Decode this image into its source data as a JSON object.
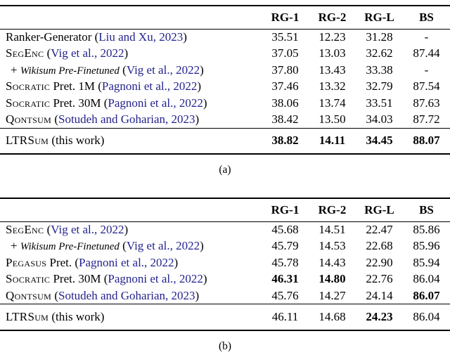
{
  "citation_color": "#23238e",
  "tables": [
    {
      "caption": "(a)",
      "columns": [
        "RG-1",
        "RG-2",
        "RG-L",
        "BS"
      ],
      "rows": [
        {
          "indent": false,
          "label_parts": [
            {
              "text": "Ranker-Generator (",
              "style": "plain"
            },
            {
              "text": "Liu and Xu, 2023",
              "style": "cite"
            },
            {
              "text": ")",
              "style": "plain"
            }
          ],
          "cells": [
            {
              "text": "35.51",
              "bold": false
            },
            {
              "text": "12.23",
              "bold": false
            },
            {
              "text": "31.28",
              "bold": false
            },
            {
              "text": "-",
              "bold": false
            }
          ]
        },
        {
          "indent": false,
          "label_parts": [
            {
              "text": "SegEnc",
              "style": "smallcaps"
            },
            {
              "text": " (",
              "style": "plain"
            },
            {
              "text": "Vig et al., 2022",
              "style": "cite"
            },
            {
              "text": ")",
              "style": "plain"
            }
          ],
          "cells": [
            {
              "text": "37.05",
              "bold": false
            },
            {
              "text": "13.03",
              "bold": false
            },
            {
              "text": "32.62",
              "bold": false
            },
            {
              "text": "87.44",
              "bold": false
            }
          ]
        },
        {
          "indent": true,
          "label_parts": [
            {
              "text": "+ ",
              "style": "plain"
            },
            {
              "text": "Wikisum Pre-Finetuned",
              "style": "italic"
            },
            {
              "text": " (",
              "style": "plain"
            },
            {
              "text": "Vig et al., 2022",
              "style": "cite"
            },
            {
              "text": ")",
              "style": "plain"
            }
          ],
          "cells": [
            {
              "text": "37.80",
              "bold": false
            },
            {
              "text": "13.43",
              "bold": false
            },
            {
              "text": "33.38",
              "bold": false
            },
            {
              "text": "-",
              "bold": false
            }
          ]
        },
        {
          "indent": false,
          "label_parts": [
            {
              "text": "Socratic",
              "style": "smallcaps"
            },
            {
              "text": " Pret. 1M (",
              "style": "plain"
            },
            {
              "text": "Pagnoni et al., 2022",
              "style": "cite"
            },
            {
              "text": ")",
              "style": "plain"
            }
          ],
          "cells": [
            {
              "text": "37.46",
              "bold": false
            },
            {
              "text": "13.32",
              "bold": false
            },
            {
              "text": "32.79",
              "bold": false
            },
            {
              "text": "87.54",
              "bold": false
            }
          ]
        },
        {
          "indent": false,
          "label_parts": [
            {
              "text": "Socratic",
              "style": "smallcaps"
            },
            {
              "text": " Pret. 30M (",
              "style": "plain"
            },
            {
              "text": "Pagnoni et al., 2022",
              "style": "cite"
            },
            {
              "text": ")",
              "style": "plain"
            }
          ],
          "cells": [
            {
              "text": "38.06",
              "bold": false
            },
            {
              "text": "13.74",
              "bold": false
            },
            {
              "text": "33.51",
              "bold": false
            },
            {
              "text": "87.63",
              "bold": false
            }
          ]
        },
        {
          "indent": false,
          "label_parts": [
            {
              "text": "Qontsum",
              "style": "smallcaps"
            },
            {
              "text": " (",
              "style": "plain"
            },
            {
              "text": "Sotudeh and Goharian, 2023",
              "style": "cite"
            },
            {
              "text": ")",
              "style": "plain"
            }
          ],
          "cells": [
            {
              "text": "38.42",
              "bold": false
            },
            {
              "text": "13.50",
              "bold": false
            },
            {
              "text": "34.03",
              "bold": false
            },
            {
              "text": "87.72",
              "bold": false
            }
          ]
        }
      ],
      "final_rows": [
        {
          "indent": false,
          "label_parts": [
            {
              "text": "LTRSum",
              "style": "smallcaps"
            },
            {
              "text": " (this work)",
              "style": "plain"
            }
          ],
          "cells": [
            {
              "text": "38.82",
              "bold": true
            },
            {
              "text": "14.11",
              "bold": true
            },
            {
              "text": "34.45",
              "bold": true
            },
            {
              "text": "88.07",
              "bold": true
            }
          ]
        }
      ]
    },
    {
      "caption": "(b)",
      "columns": [
        "RG-1",
        "RG-2",
        "RG-L",
        "BS"
      ],
      "rows": [
        {
          "indent": false,
          "label_parts": [
            {
              "text": "SegEnc",
              "style": "smallcaps"
            },
            {
              "text": " (",
              "style": "plain"
            },
            {
              "text": "Vig et al., 2022",
              "style": "cite"
            },
            {
              "text": ")",
              "style": "plain"
            }
          ],
          "cells": [
            {
              "text": "45.68",
              "bold": false
            },
            {
              "text": "14.51",
              "bold": false
            },
            {
              "text": "22.47",
              "bold": false
            },
            {
              "text": "85.86",
              "bold": false
            }
          ]
        },
        {
          "indent": true,
          "label_parts": [
            {
              "text": "+ ",
              "style": "plain"
            },
            {
              "text": "Wikisum Pre-Finetuned",
              "style": "italic"
            },
            {
              "text": " (",
              "style": "plain"
            },
            {
              "text": "Vig et al., 2022",
              "style": "cite"
            },
            {
              "text": ")",
              "style": "plain"
            }
          ],
          "cells": [
            {
              "text": "45.79",
              "bold": false
            },
            {
              "text": "14.53",
              "bold": false
            },
            {
              "text": "22.68",
              "bold": false
            },
            {
              "text": "85.96",
              "bold": false
            }
          ]
        },
        {
          "indent": false,
          "label_parts": [
            {
              "text": "Pegasus",
              "style": "smallcaps"
            },
            {
              "text": " Pret.  (",
              "style": "plain"
            },
            {
              "text": "Pagnoni et al., 2022",
              "style": "cite"
            },
            {
              "text": ")",
              "style": "plain"
            }
          ],
          "cells": [
            {
              "text": "45.78",
              "bold": false
            },
            {
              "text": "14.43",
              "bold": false
            },
            {
              "text": "22.90",
              "bold": false
            },
            {
              "text": "85.94",
              "bold": false
            }
          ]
        },
        {
          "indent": false,
          "label_parts": [
            {
              "text": "Socratic",
              "style": "smallcaps"
            },
            {
              "text": " Pret. 30M (",
              "style": "plain"
            },
            {
              "text": "Pagnoni et al., 2022",
              "style": "cite"
            },
            {
              "text": ")",
              "style": "plain"
            }
          ],
          "cells": [
            {
              "text": "46.31",
              "bold": true
            },
            {
              "text": "14.80",
              "bold": true
            },
            {
              "text": "22.76",
              "bold": false
            },
            {
              "text": "86.04",
              "bold": false
            }
          ]
        },
        {
          "indent": false,
          "label_parts": [
            {
              "text": "Qontsum",
              "style": "smallcaps"
            },
            {
              "text": " (",
              "style": "plain"
            },
            {
              "text": "Sotudeh and Goharian, 2023",
              "style": "cite"
            },
            {
              "text": ")",
              "style": "plain"
            }
          ],
          "cells": [
            {
              "text": "45.76",
              "bold": false
            },
            {
              "text": "14.27",
              "bold": false
            },
            {
              "text": "24.14",
              "bold": false
            },
            {
              "text": "86.07",
              "bold": true
            }
          ]
        }
      ],
      "final_rows": [
        {
          "indent": false,
          "label_parts": [
            {
              "text": "LTRSum",
              "style": "smallcaps"
            },
            {
              "text": " (this work)",
              "style": "plain"
            }
          ],
          "cells": [
            {
              "text": "46.11",
              "bold": false
            },
            {
              "text": "14.68",
              "bold": false
            },
            {
              "text": "24.23",
              "bold": true
            },
            {
              "text": "86.04",
              "bold": false
            }
          ]
        }
      ]
    }
  ]
}
